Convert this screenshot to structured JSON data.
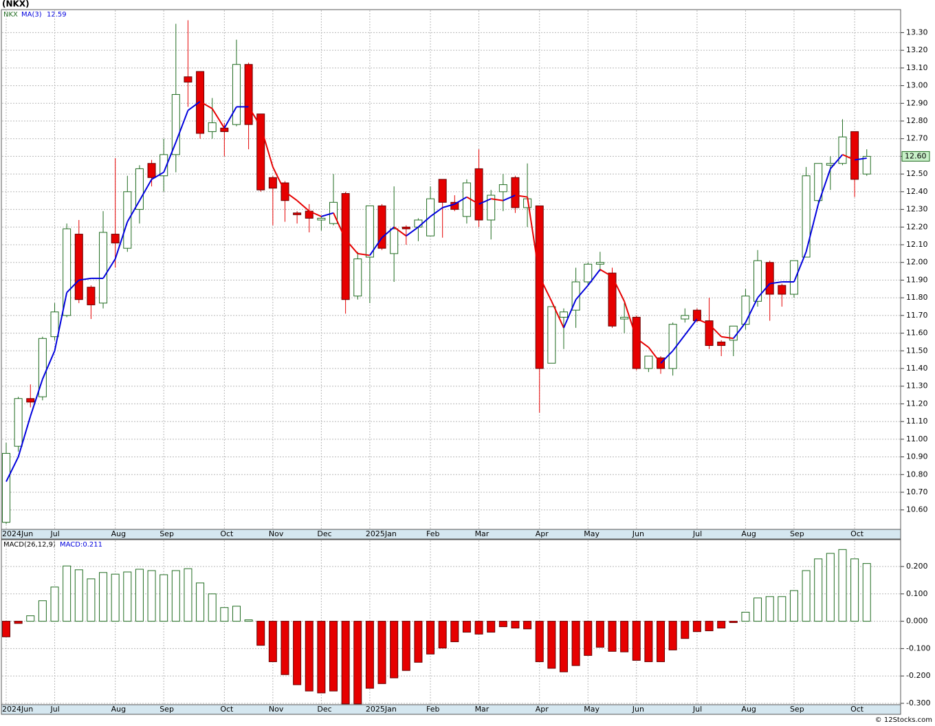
{
  "title": "(NKX)",
  "watermark": "© 12Stocks.com",
  "chart_data": [
    {
      "type": "candlestick",
      "ticker": "NKX",
      "categories": [
        "2024Jun",
        null,
        null,
        null,
        "Jul",
        null,
        null,
        null,
        null,
        "Aug",
        null,
        null,
        null,
        "Sep",
        null,
        null,
        null,
        null,
        "Oct",
        null,
        null,
        null,
        "Nov",
        null,
        null,
        null,
        "Dec",
        null,
        null,
        null,
        "2025Jan",
        null,
        null,
        null,
        null,
        "Feb",
        null,
        null,
        null,
        "Mar",
        null,
        null,
        null,
        null,
        "Apr",
        null,
        null,
        null,
        "May",
        null,
        null,
        null,
        "Jun",
        null,
        null,
        null,
        null,
        "Jul",
        null,
        null,
        null,
        "Aug",
        null,
        null,
        null,
        "Sep",
        null,
        null,
        null,
        null,
        "Oct",
        null
      ],
      "open": [
        10.53,
        10.96,
        11.23,
        11.24,
        11.58,
        11.7,
        12.16,
        11.86,
        11.77,
        12.16,
        12.08,
        12.3,
        12.56,
        12.49,
        12.61,
        13.05,
        13.08,
        12.74,
        12.76,
        12.78,
        13.12,
        12.84,
        12.48,
        12.45,
        12.28,
        12.29,
        12.24,
        12.22,
        12.39,
        11.81,
        12.03,
        12.32,
        12.05,
        12.2,
        12.2,
        12.15,
        12.47,
        12.34,
        12.26,
        12.53,
        12.24,
        12.4,
        12.48,
        12.31,
        12.32,
        11.43,
        11.69,
        11.73,
        11.89,
        11.99,
        11.94,
        11.68,
        11.69,
        11.4,
        11.46,
        11.4,
        11.68,
        11.73,
        11.67,
        11.55,
        11.56,
        11.65,
        11.78,
        12.0,
        11.87,
        11.82,
        12.03,
        12.35,
        12.55,
        12.56,
        12.74,
        12.5
      ],
      "high": [
        10.98,
        11.24,
        11.31,
        11.58,
        11.77,
        12.22,
        12.24,
        11.87,
        12.29,
        12.59,
        12.49,
        12.55,
        12.58,
        12.7,
        13.35,
        13.37,
        13.08,
        12.93,
        12.79,
        13.26,
        13.13,
        12.84,
        12.49,
        12.46,
        12.29,
        12.33,
        12.26,
        12.5,
        12.4,
        12.06,
        12.32,
        12.33,
        12.43,
        12.21,
        12.25,
        12.43,
        12.47,
        12.38,
        12.47,
        12.64,
        12.41,
        12.5,
        12.49,
        12.56,
        12.32,
        11.75,
        11.74,
        11.97,
        12.0,
        12.06,
        11.97,
        11.77,
        11.7,
        11.47,
        11.47,
        11.66,
        11.74,
        11.74,
        11.8,
        11.56,
        11.64,
        11.85,
        12.07,
        12.01,
        11.88,
        12.01,
        12.54,
        12.56,
        12.6,
        12.81,
        12.74,
        12.64
      ],
      "low": [
        10.52,
        10.93,
        11.18,
        11.22,
        11.56,
        11.69,
        11.77,
        11.68,
        11.74,
        11.97,
        12.06,
        12.22,
        12.43,
        12.4,
        12.51,
        12.88,
        12.7,
        12.7,
        12.6,
        12.77,
        12.64,
        12.4,
        12.21,
        12.23,
        12.22,
        12.17,
        12.18,
        12.21,
        11.71,
        11.79,
        11.77,
        12.07,
        11.89,
        12.1,
        12.12,
        12.15,
        12.14,
        12.29,
        12.22,
        12.2,
        12.13,
        12.29,
        12.28,
        12.2,
        11.15,
        11.43,
        11.51,
        11.63,
        11.87,
        11.95,
        11.63,
        11.6,
        11.39,
        11.38,
        11.37,
        11.36,
        11.66,
        11.66,
        11.51,
        11.47,
        11.47,
        11.62,
        11.75,
        11.67,
        11.75,
        11.8,
        12.03,
        12.34,
        12.41,
        12.55,
        12.37,
        12.49
      ],
      "close": [
        10.92,
        11.23,
        11.21,
        11.57,
        11.72,
        12.19,
        11.79,
        11.76,
        12.17,
        12.11,
        12.4,
        12.53,
        12.48,
        12.61,
        12.95,
        13.02,
        12.73,
        12.79,
        12.74,
        13.12,
        12.78,
        12.41,
        12.42,
        12.35,
        12.27,
        12.25,
        12.25,
        12.34,
        11.79,
        12.02,
        12.32,
        12.08,
        12.19,
        12.19,
        12.24,
        12.36,
        12.34,
        12.3,
        12.45,
        12.24,
        12.38,
        12.44,
        12.31,
        12.36,
        11.4,
        11.75,
        11.72,
        11.89,
        11.99,
        12.0,
        11.64,
        11.69,
        11.4,
        11.47,
        11.4,
        11.65,
        11.7,
        11.67,
        11.53,
        11.53,
        11.64,
        11.81,
        12.01,
        11.82,
        11.82,
        12.01,
        12.49,
        12.56,
        12.56,
        12.71,
        12.47,
        12.6
      ],
      "up_color": "#1f6b1f",
      "down_color": "#e60000",
      "last_price": {
        "value": 12.6,
        "label": "12.60"
      },
      "series": [
        {
          "name": "MA(3)",
          "up_color": "#0000dd",
          "down_color": "#e60000",
          "values": [
            10.76,
            10.9,
            11.13,
            11.34,
            11.5,
            11.83,
            11.9,
            11.91,
            11.91,
            12.02,
            12.23,
            12.35,
            12.47,
            12.51,
            12.68,
            12.86,
            12.91,
            12.87,
            12.76,
            12.88,
            12.88,
            12.77,
            12.54,
            12.4,
            12.35,
            12.29,
            12.26,
            12.28,
            12.13,
            12.05,
            12.04,
            12.14,
            12.2,
            12.15,
            12.2,
            12.26,
            12.31,
            12.33,
            12.37,
            12.33,
            12.36,
            12.35,
            12.38,
            12.37,
            11.92,
            11.78,
            11.63,
            11.79,
            11.87,
            11.96,
            11.92,
            11.78,
            11.57,
            11.52,
            11.43,
            11.5,
            11.59,
            11.68,
            11.65,
            11.58,
            11.57,
            11.66,
            11.8,
            11.88,
            11.89,
            11.89,
            12.06,
            12.33,
            12.53,
            12.61,
            12.58,
            12.59
          ]
        }
      ],
      "ylim": [
        10.49,
        13.43
      ],
      "yticks": [
        {
          "value": 10.6,
          "label": "10.60"
        },
        {
          "value": 10.7,
          "label": "10.70"
        },
        {
          "value": 10.8,
          "label": "10.80"
        },
        {
          "value": 10.9,
          "label": "10.90"
        },
        {
          "value": 11.0,
          "label": "11.00"
        },
        {
          "value": 11.1,
          "label": "11.10"
        },
        {
          "value": 11.2,
          "label": "11.20"
        },
        {
          "value": 11.3,
          "label": "11.30"
        },
        {
          "value": 11.4,
          "label": "11.40"
        },
        {
          "value": 11.5,
          "label": "11.50"
        },
        {
          "value": 11.6,
          "label": "11.60"
        },
        {
          "value": 11.7,
          "label": "11.70"
        },
        {
          "value": 11.8,
          "label": "11.80"
        },
        {
          "value": 11.9,
          "label": "11.90"
        },
        {
          "value": 12.0,
          "label": "12.00"
        },
        {
          "value": 12.1,
          "label": "12.10"
        },
        {
          "value": 12.2,
          "label": "12.20"
        },
        {
          "value": 12.3,
          "label": "12.30"
        },
        {
          "value": 12.4,
          "label": "12.40"
        },
        {
          "value": 12.5,
          "label": "12.50"
        },
        {
          "value": 12.6,
          "label": "12.60"
        },
        {
          "value": 12.7,
          "label": "12.70"
        },
        {
          "value": 12.8,
          "label": "12.80"
        },
        {
          "value": 12.9,
          "label": "12.90"
        },
        {
          "value": 13.0,
          "label": "13.00"
        },
        {
          "value": 13.1,
          "label": "13.10"
        },
        {
          "value": 13.2,
          "label": "13.20"
        },
        {
          "value": 13.3,
          "label": "13.30"
        }
      ],
      "grid": true
    },
    {
      "type": "bar",
      "name": "MACD(26,12,9)",
      "current_label": "MACD:0.211",
      "categories": [
        "2024Jun",
        null,
        null,
        null,
        "Jul",
        null,
        null,
        null,
        null,
        "Aug",
        null,
        null,
        null,
        "Sep",
        null,
        null,
        null,
        null,
        "Oct",
        null,
        null,
        null,
        "Nov",
        null,
        null,
        null,
        "Dec",
        null,
        null,
        null,
        "2025Jan",
        null,
        null,
        null,
        null,
        "Feb",
        null,
        null,
        null,
        "Mar",
        null,
        null,
        null,
        null,
        "Apr",
        null,
        null,
        null,
        "May",
        null,
        null,
        null,
        "Jun",
        null,
        null,
        null,
        null,
        "Jul",
        null,
        null,
        null,
        "Aug",
        null,
        null,
        null,
        "Sep",
        null,
        null,
        null,
        null,
        "Oct",
        null
      ],
      "values": [
        -0.057,
        -0.008,
        0.02,
        0.075,
        0.125,
        0.202,
        0.188,
        0.155,
        0.178,
        0.172,
        0.18,
        0.19,
        0.185,
        0.17,
        0.185,
        0.192,
        0.14,
        0.1,
        0.05,
        0.055,
        0.005,
        -0.088,
        -0.148,
        -0.195,
        -0.232,
        -0.255,
        -0.262,
        -0.255,
        -0.302,
        -0.302,
        -0.245,
        -0.228,
        -0.207,
        -0.18,
        -0.15,
        -0.12,
        -0.098,
        -0.075,
        -0.04,
        -0.047,
        -0.04,
        -0.02,
        -0.025,
        -0.028,
        -0.148,
        -0.172,
        -0.185,
        -0.162,
        -0.125,
        -0.095,
        -0.11,
        -0.112,
        -0.143,
        -0.148,
        -0.148,
        -0.105,
        -0.063,
        -0.038,
        -0.035,
        -0.025,
        -0.005,
        0.033,
        0.085,
        0.09,
        0.09,
        0.112,
        0.185,
        0.228,
        0.248,
        0.262,
        0.228,
        0.211
      ],
      "up_color": "#1f6b1f",
      "down_color": "#e60000",
      "ylim": [
        -0.305,
        0.298
      ],
      "yticks": [
        {
          "value": -0.3,
          "label": "-0.300"
        },
        {
          "value": -0.2,
          "label": "-0.200"
        },
        {
          "value": -0.1,
          "label": "-0.100"
        },
        {
          "value": 0,
          "label": "0.000"
        },
        {
          "value": 0.1,
          "label": "0.100"
        },
        {
          "value": 0.2,
          "label": "0.200"
        }
      ],
      "grid": true
    }
  ]
}
